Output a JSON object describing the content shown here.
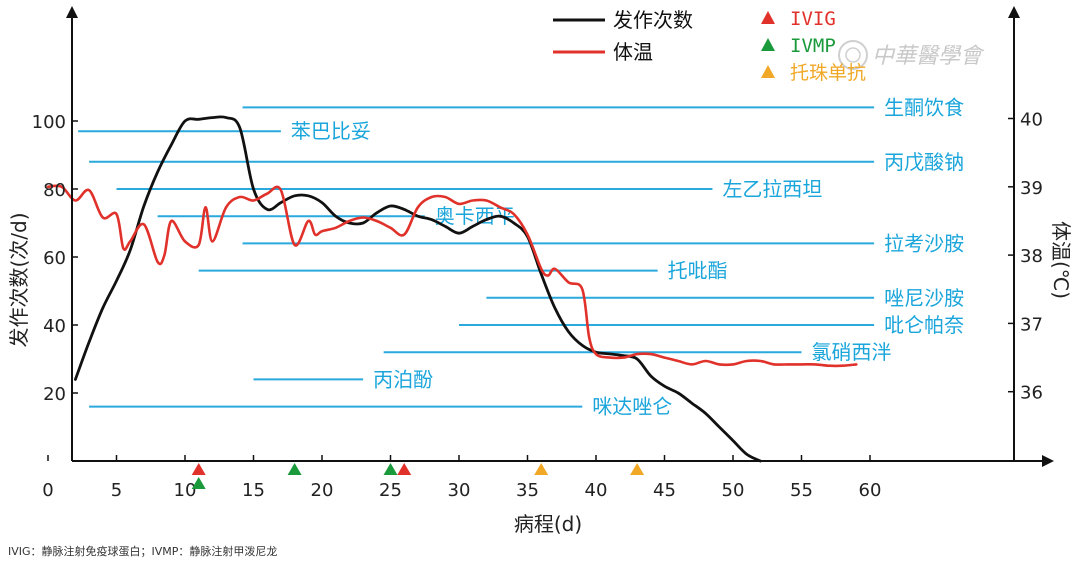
{
  "chart_data": {
    "type": "line",
    "xlabel": "病程(d)",
    "ylabel_left": "发作次数(次/d)",
    "ylabel_right": "体温(℃)",
    "xlim": [
      -3,
      65
    ],
    "ylim_left": [
      0,
      118
    ],
    "ylim_right": [
      35.2,
      41.1
    ],
    "x_ticks": [
      0,
      5,
      10,
      15,
      20,
      25,
      30,
      35,
      40,
      45,
      50,
      55,
      60
    ],
    "y_ticks_left": [
      20,
      40,
      60,
      80,
      100
    ],
    "y_ticks_right": [
      36,
      37,
      38,
      39,
      40
    ],
    "series": [
      {
        "name": "发作次数",
        "axis": "left",
        "color": "#111111",
        "x": [
          2,
          3,
          4,
          5,
          6,
          7,
          8,
          9,
          10,
          11,
          12,
          13,
          14,
          15,
          16,
          17,
          18,
          19,
          20,
          21,
          22,
          23,
          24,
          25,
          26,
          27,
          28,
          29,
          30,
          31,
          32,
          33,
          34,
          35,
          36,
          37,
          38,
          39,
          40,
          41,
          42,
          43,
          44,
          45,
          46,
          47,
          48,
          49,
          50,
          51,
          52
        ],
        "values": [
          24,
          35,
          45,
          53,
          62,
          75,
          85,
          93,
          100,
          100.5,
          101,
          101,
          98,
          80,
          74,
          76,
          78,
          78,
          76,
          72,
          70,
          70,
          73,
          75,
          74,
          72,
          71,
          69,
          67,
          69,
          71,
          72,
          70,
          66,
          55,
          45,
          38,
          34,
          32,
          31.5,
          31,
          30,
          25,
          22,
          20,
          17,
          14,
          10,
          6,
          2,
          0
        ]
      },
      {
        "name": "体温",
        "axis": "right",
        "color": "#e0312a",
        "x": [
          0,
          1,
          2,
          3,
          4,
          5,
          5.5,
          6,
          7,
          8,
          8.5,
          9,
          10,
          11,
          11.5,
          12,
          13,
          14,
          15,
          16,
          17,
          18,
          19,
          19.5,
          20,
          21,
          22,
          23,
          24,
          25,
          26,
          27,
          28,
          29,
          30,
          31,
          32,
          33,
          34,
          35,
          36,
          36.5,
          37,
          38,
          39,
          39.5,
          40,
          41,
          42,
          43,
          44,
          45,
          46,
          47,
          48,
          49,
          50,
          51,
          52,
          53,
          54,
          55,
          56,
          57,
          58,
          59
        ],
        "values": [
          39.0,
          39.0,
          38.8,
          38.95,
          38.55,
          38.6,
          38.1,
          38.2,
          38.45,
          37.9,
          38.0,
          38.5,
          38.2,
          38.15,
          38.7,
          38.2,
          38.7,
          38.85,
          38.8,
          38.9,
          38.95,
          38.15,
          38.5,
          38.3,
          38.35,
          38.4,
          38.5,
          38.55,
          38.5,
          38.4,
          38.3,
          38.7,
          38.85,
          38.85,
          38.75,
          38.8,
          38.8,
          38.7,
          38.6,
          38.3,
          37.8,
          37.7,
          37.8,
          37.6,
          37.5,
          36.8,
          36.55,
          36.5,
          36.5,
          36.55,
          36.55,
          36.5,
          36.45,
          36.4,
          36.45,
          36.4,
          36.4,
          36.45,
          36.45,
          36.4,
          36.4,
          36.4,
          36.4,
          36.38,
          36.38,
          36.4
        ]
      }
    ],
    "drugs": [
      {
        "name": "生酮饮食",
        "start": 14.2,
        "end": 60.3,
        "y": 104
      },
      {
        "name": "苯巴比妥",
        "start": 2.2,
        "end": 17,
        "y": 97
      },
      {
        "name": "丙戊酸钠",
        "start": 3,
        "end": 60.3,
        "y": 88
      },
      {
        "name": "左乙拉西坦",
        "start": 5,
        "end": 48.5,
        "y": 80
      },
      {
        "name": "奥卡西平",
        "start": 8,
        "end": 27.5,
        "y": 72
      },
      {
        "name": "拉考沙胺",
        "start": 14.2,
        "end": 60.3,
        "y": 64
      },
      {
        "name": "托吡酯",
        "start": 11,
        "end": 44.5,
        "y": 56
      },
      {
        "name": "唑尼沙胺",
        "start": 32,
        "end": 60.3,
        "y": 48
      },
      {
        "name": "吡仑帕奈",
        "start": 30,
        "end": 60.3,
        "y": 40
      },
      {
        "name": "氯硝西泮",
        "start": 24.5,
        "end": 55,
        "y": 32
      },
      {
        "name": "丙泊酚",
        "start": 15,
        "end": 23,
        "y": 24
      },
      {
        "name": "咪达唑仑",
        "start": 3,
        "end": 39,
        "y": 16
      }
    ],
    "markers": [
      {
        "type": "IVIG",
        "day": 11,
        "color": "#e0312a"
      },
      {
        "type": "IVMP",
        "day": 11,
        "color": "#1a9a3b"
      },
      {
        "type": "IVMP",
        "day": 18,
        "color": "#1a9a3b"
      },
      {
        "type": "IVMP",
        "day": 25,
        "color": "#1a9a3b"
      },
      {
        "type": "IVIG",
        "day": 26,
        "color": "#e0312a"
      },
      {
        "type": "托珠单抗",
        "day": 36,
        "color": "#f0a826"
      },
      {
        "type": "托珠单抗",
        "day": 43,
        "color": "#f0a826"
      }
    ],
    "legend": {
      "lines": [
        {
          "label": "发作次数",
          "color": "#111111"
        },
        {
          "label": "体温",
          "color": "#e0312a"
        }
      ],
      "markers": [
        {
          "label": "IVIG",
          "color": "#e0312a"
        },
        {
          "label": "IVMP",
          "color": "#1a9a3b"
        },
        {
          "label": "托珠单抗",
          "color": "#f0a826"
        }
      ]
    },
    "watermark": "中華醫學會",
    "footnote": "IVIG：静脉注射免疫球蛋白；IVMP：静脉注射甲泼尼龙"
  }
}
